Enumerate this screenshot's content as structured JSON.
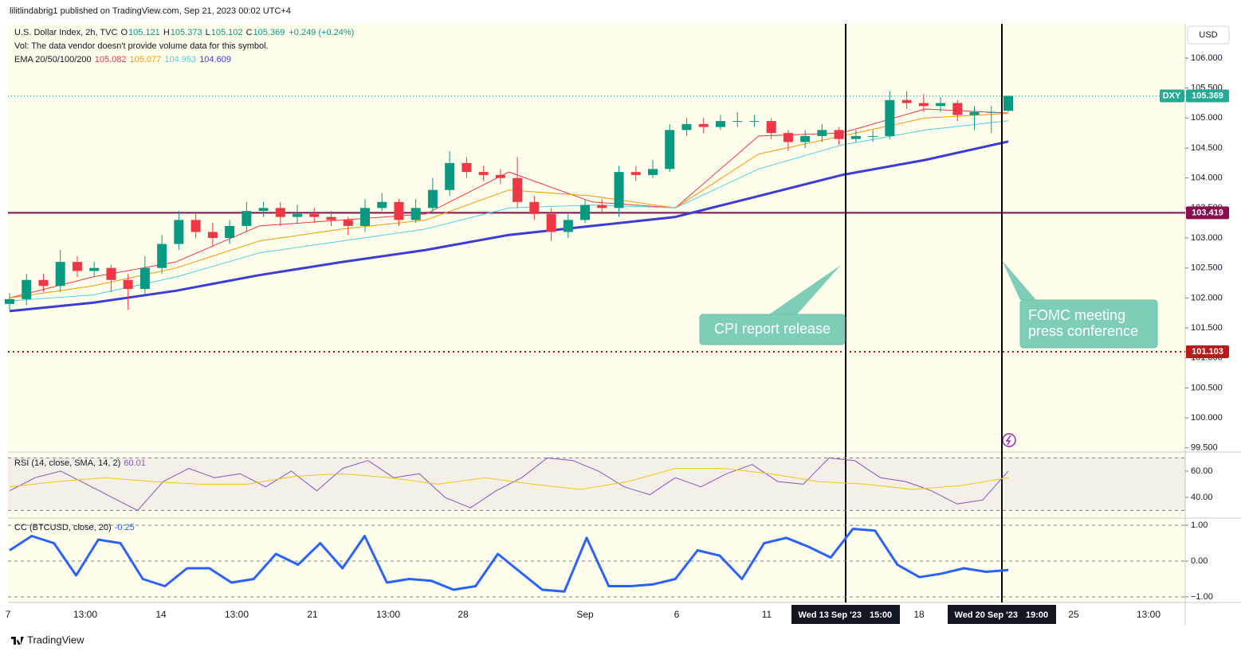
{
  "header": {
    "publisher": "lilitlindabrig1 published on TradingView.com, Sep 21, 2023 00:02 UTC+4",
    "footer_brand": "TradingView"
  },
  "chart_data": [
    {
      "type": "candlestick",
      "title": "U.S. Dollar Index, 2h, TVC",
      "ohlc_labels": [
        "O",
        "H",
        "L",
        "C"
      ],
      "ohlc_values": [
        105.121,
        105.373,
        105.102,
        105.369
      ],
      "change": "+0.249 (+0.24%)",
      "subtitle": "Vol: The data vendor doesn't provide volume data for this symbol.",
      "indicator_label": "EMA 20/50/100/200",
      "currency": "USD",
      "up_color": "#089981",
      "down_color": "#f23645",
      "open": [
        101.9,
        101.98,
        102.3,
        102.2,
        102.6,
        102.45,
        102.5,
        102.3,
        102.15,
        102.5,
        102.9,
        103.3,
        103.1,
        103.0,
        103.2,
        103.45,
        103.5,
        103.35,
        103.4,
        103.35,
        103.3,
        103.2,
        103.5,
        103.6,
        103.3,
        103.5,
        103.8,
        104.25,
        104.1,
        104.05,
        104.0,
        103.6,
        103.4,
        103.1,
        103.3,
        103.55,
        103.5,
        104.1,
        104.05,
        104.15,
        104.8,
        104.9,
        104.85,
        104.95,
        104.95,
        104.95,
        104.75,
        104.6,
        104.7,
        104.8,
        104.65,
        104.7,
        104.7,
        105.3,
        105.25,
        105.2,
        105.25,
        105.05,
        105.1,
        105.121
      ],
      "high": [
        102.08,
        102.4,
        102.4,
        102.8,
        102.7,
        102.6,
        102.55,
        102.4,
        102.7,
        103.05,
        103.45,
        103.4,
        103.25,
        103.3,
        103.6,
        103.6,
        103.6,
        103.55,
        103.5,
        103.45,
        103.35,
        103.65,
        103.75,
        103.65,
        103.65,
        104.0,
        104.45,
        104.35,
        104.2,
        104.15,
        104.35,
        103.7,
        103.5,
        103.4,
        103.65,
        103.65,
        104.2,
        104.2,
        104.3,
        104.9,
        105.0,
        105.0,
        105.05,
        105.1,
        105.05,
        105.0,
        104.8,
        104.8,
        104.9,
        104.85,
        104.8,
        104.8,
        105.45,
        105.45,
        105.4,
        105.35,
        105.3,
        105.2,
        105.2,
        105.373
      ],
      "low": [
        101.8,
        101.88,
        102.1,
        102.1,
        102.35,
        102.35,
        102.1,
        101.8,
        102.05,
        102.4,
        102.8,
        103.0,
        102.85,
        102.9,
        103.1,
        103.35,
        103.2,
        103.25,
        103.25,
        103.2,
        103.05,
        103.1,
        103.45,
        103.2,
        103.25,
        103.4,
        103.7,
        104.0,
        103.95,
        103.9,
        103.5,
        103.3,
        102.95,
        103.0,
        103.25,
        103.4,
        103.35,
        103.95,
        104.0,
        104.1,
        104.7,
        104.75,
        104.8,
        104.85,
        104.85,
        104.65,
        104.45,
        104.5,
        104.6,
        104.55,
        104.6,
        104.6,
        104.65,
        105.15,
        105.1,
        105.1,
        104.95,
        104.8,
        104.75,
        105.102
      ],
      "close": [
        101.98,
        102.3,
        102.2,
        102.6,
        102.45,
        102.5,
        102.3,
        102.15,
        102.5,
        102.9,
        103.3,
        103.1,
        103.0,
        103.2,
        103.45,
        103.5,
        103.35,
        103.4,
        103.35,
        103.3,
        103.2,
        103.5,
        103.6,
        103.3,
        103.5,
        103.8,
        104.25,
        104.1,
        104.05,
        104.0,
        103.6,
        103.4,
        103.1,
        103.3,
        103.55,
        103.5,
        104.1,
        104.05,
        104.15,
        104.8,
        104.9,
        104.85,
        104.95,
        104.95,
        104.95,
        104.75,
        104.6,
        104.7,
        104.8,
        104.65,
        104.7,
        104.7,
        105.3,
        105.25,
        105.2,
        105.25,
        105.05,
        105.1,
        105.1,
        105.369
      ],
      "series": [
        {
          "color": "#f23645",
          "last": 105.082,
          "width": 1,
          "values": [
            102.0,
            102.35,
            102.6,
            103.2,
            103.3,
            103.4,
            104.1,
            103.6,
            103.5,
            104.7,
            104.75,
            105.15,
            105.082
          ]
        },
        {
          "color": "#ff9800",
          "last": 105.077,
          "width": 1,
          "values": [
            102.0,
            102.2,
            102.5,
            102.95,
            103.15,
            103.3,
            103.8,
            103.7,
            103.5,
            104.4,
            104.7,
            105.0,
            105.077
          ]
        },
        {
          "color": "#4dd0e1",
          "last": 104.953,
          "width": 1,
          "values": [
            101.95,
            102.05,
            102.35,
            102.75,
            102.95,
            103.15,
            103.5,
            103.55,
            103.5,
            104.15,
            104.55,
            104.8,
            104.953
          ]
        },
        {
          "color": "#3c3cd6",
          "last": 104.609,
          "width": 3,
          "values": [
            101.78,
            101.92,
            102.12,
            102.38,
            102.6,
            102.8,
            103.05,
            103.2,
            103.35,
            103.7,
            104.05,
            104.3,
            104.609
          ]
        }
      ],
      "ylim": [
        99.43,
        106.57
      ],
      "yticks": [
        {
          "value": 99.5,
          "label": "99.500"
        },
        {
          "value": 100,
          "label": "100.000"
        },
        {
          "value": 100.5,
          "label": "100.500"
        },
        {
          "value": 101,
          "label": "101.000"
        },
        {
          "value": 101.5,
          "label": "101.500"
        },
        {
          "value": 102,
          "label": "102.000"
        },
        {
          "value": 102.5,
          "label": "102.500"
        },
        {
          "value": 103,
          "label": "103.000"
        },
        {
          "value": 103.5,
          "label": "103.500"
        },
        {
          "value": 104,
          "label": "104.000"
        },
        {
          "value": 104.5,
          "label": "104.500"
        },
        {
          "value": 105,
          "label": "105.000"
        },
        {
          "value": 105.5,
          "label": "105.500"
        },
        {
          "value": 106,
          "label": "106.000"
        }
      ],
      "last_price": {
        "symbol": "DXY",
        "value": 105.369,
        "color": "#22ab94"
      },
      "levels": [
        {
          "value": 103.419,
          "color": "#880e4f",
          "style": "solid"
        },
        {
          "value": 101.103,
          "color": "#b71c1c",
          "style": "dotted"
        }
      ],
      "annotations": [
        {
          "lines": [
            "CPI report release"
          ]
        },
        {
          "lines": [
            "FOMC meeting",
            "press conference"
          ]
        }
      ],
      "x_labels": [
        "7",
        "13:00",
        "14",
        "13:00",
        "21",
        "13:00",
        "28",
        "Sep",
        "6",
        "11",
        "18",
        "25",
        "13:00"
      ],
      "events": [
        {
          "date": "Wed 13 Sep '23",
          "time": "15:00"
        },
        {
          "date": "Wed 20 Sep '23",
          "time": "19:00"
        }
      ]
    },
    {
      "type": "line",
      "title": "RSI (14, close, SMA, 14, 2)",
      "last": 60.01,
      "last_color": "#7e57c2",
      "series": [
        {
          "color": "#7e57c2",
          "width": 1,
          "values": [
            45,
            55,
            60,
            50,
            40,
            30,
            52,
            62,
            55,
            58,
            48,
            60,
            45,
            62,
            68,
            55,
            58,
            40,
            32,
            45,
            55,
            70,
            68,
            60,
            48,
            42,
            55,
            48,
            58,
            65,
            52,
            50,
            70,
            68,
            55,
            52,
            45,
            35,
            38,
            60
          ]
        },
        {
          "color": "#f0c419",
          "width": 1,
          "values": [
            48,
            52,
            55,
            52,
            50,
            50,
            56,
            58,
            55,
            50,
            55,
            50,
            46,
            52,
            62,
            62,
            58,
            52,
            50,
            46,
            49,
            55
          ]
        }
      ],
      "ylim": [
        24.8,
        74.5
      ],
      "yticks": [
        {
          "value": 40,
          "label": "40.00"
        },
        {
          "value": 60,
          "label": "60.00"
        }
      ],
      "bands": [
        30,
        70
      ],
      "grid": false
    },
    {
      "type": "line",
      "title": "CC (BTCUSD, close, 20)",
      "last": -0.25,
      "last_color": "#2962ff",
      "series": [
        {
          "color": "#2962ff",
          "width": 3,
          "values": [
            0.3,
            0.7,
            0.5,
            -0.4,
            0.6,
            0.5,
            -0.5,
            -0.7,
            -0.2,
            -0.2,
            -0.6,
            -0.5,
            0.2,
            -0.1,
            0.5,
            -0.2,
            0.7,
            -0.6,
            -0.5,
            -0.55,
            -0.8,
            -0.7,
            0.2,
            -0.3,
            -0.8,
            -0.85,
            0.65,
            -0.7,
            -0.7,
            -0.65,
            -0.5,
            0.3,
            0.15,
            -0.5,
            0.5,
            0.65,
            0.4,
            0.1,
            0.9,
            0.85,
            -0.1,
            -0.45,
            -0.35,
            -0.2,
            -0.3,
            -0.25
          ]
        }
      ],
      "ylim": [
        -1.156,
        1.178
      ],
      "yticks": [
        {
          "value": -1,
          "label": "−1.00"
        },
        {
          "value": 0,
          "label": "0.00"
        },
        {
          "value": 1,
          "label": "1.00"
        }
      ],
      "grid": true
    }
  ]
}
